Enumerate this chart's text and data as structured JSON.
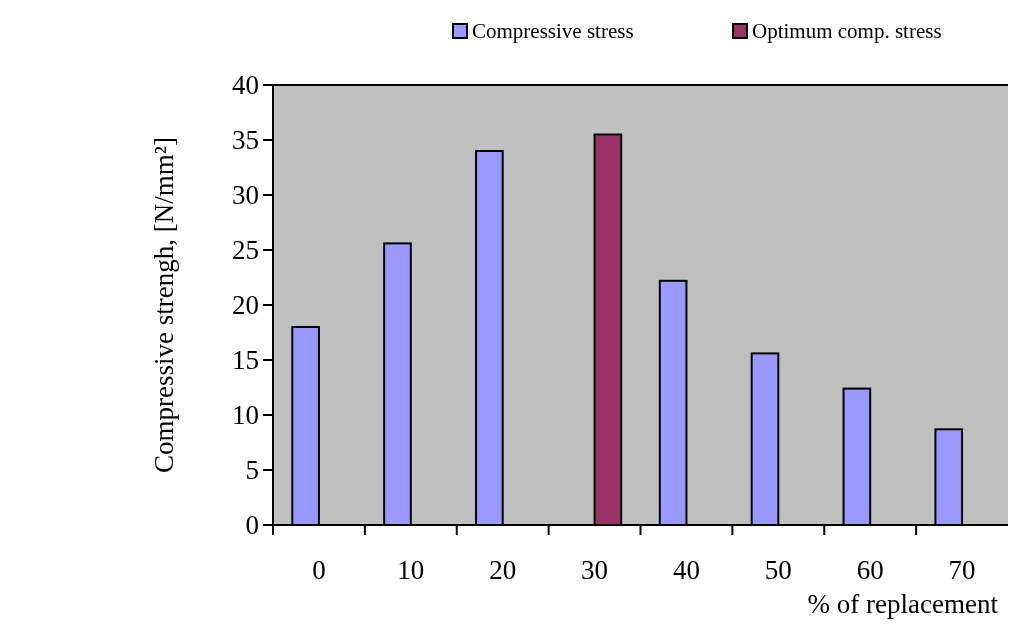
{
  "chart_data": {
    "type": "bar",
    "xlabel": "% of replacement",
    "ylabel": "Compressive strengh, [N/mm²]",
    "categories": [
      "0",
      "10",
      "20",
      "30",
      "40",
      "50",
      "60",
      "70"
    ],
    "series": [
      {
        "name": "Compressive stress",
        "color": "#9999ff",
        "values": [
          18,
          25.6,
          34,
          null,
          22.2,
          15.6,
          12.4,
          8.7
        ]
      },
      {
        "name": "Optimum comp. stress",
        "color": "#993366",
        "values": [
          null,
          null,
          null,
          35.5,
          null,
          null,
          null,
          null
        ]
      }
    ],
    "ylim": [
      0,
      40
    ],
    "yticks": [
      0,
      5,
      10,
      15,
      20,
      25,
      30,
      35,
      40
    ],
    "grid": false,
    "legend": "top right"
  }
}
